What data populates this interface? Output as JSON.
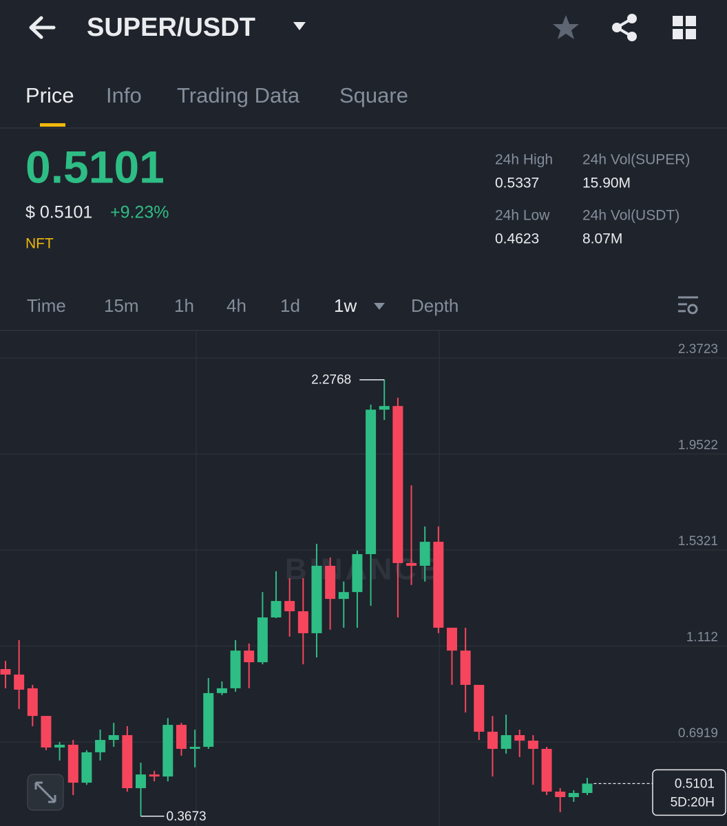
{
  "header": {
    "pair": "SUPER/USDT"
  },
  "tabs": [
    "Price",
    "Info",
    "Trading Data",
    "Square"
  ],
  "ticker": {
    "price": "0.5101",
    "usd_price": "$ 0.5101",
    "change": "+9.23%",
    "tag": "NFT",
    "stats": [
      {
        "label": "24h High",
        "value": "0.5337"
      },
      {
        "label": "24h Vol(SUPER)",
        "value": "15.90M"
      },
      {
        "label": "24h Low",
        "value": "0.4623"
      },
      {
        "label": "24h Vol(USDT)",
        "value": "8.07M"
      }
    ]
  },
  "intervals": [
    "Time",
    "15m",
    "1h",
    "4h",
    "1d",
    "1w",
    "Depth"
  ],
  "active_interval": "1w",
  "chart_data": {
    "type": "candlestick",
    "watermark": "BINANCE",
    "up_color": "#2ebd85",
    "down_color": "#f6465d",
    "grid": true,
    "ylim": [
      0.3245,
      2.4928
    ],
    "yticks": [
      2.3723,
      1.9522,
      1.5321,
      1.112,
      0.6919
    ],
    "open": [
      1.011,
      0.987,
      0.927,
      0.806,
      0.668,
      0.68,
      0.514,
      0.647,
      0.701,
      0.722,
      0.49,
      0.55,
      0.541,
      0.767,
      0.662,
      0.671,
      0.906,
      0.927,
      1.092,
      1.041,
      1.237,
      1.309,
      1.264,
      1.168,
      1.463,
      1.318,
      1.348,
      1.514,
      2.146,
      2.162,
      1.475,
      1.463,
      1.568,
      1.192,
      1.092,
      0.942,
      0.737,
      0.662,
      0.722,
      0.698,
      0.662,
      0.475,
      0.451,
      0.469
    ],
    "high": [
      1.047,
      1.138,
      0.942,
      0.806,
      0.692,
      0.701,
      0.656,
      0.746,
      0.776,
      0.761,
      0.602,
      0.566,
      0.797,
      0.776,
      0.746,
      0.972,
      0.957,
      1.138,
      1.123,
      1.348,
      1.439,
      1.409,
      1.409,
      1.559,
      1.499,
      1.394,
      1.529,
      2.168,
      2.2768,
      2.198,
      1.815,
      1.635,
      1.635,
      1.192,
      1.192,
      0.942,
      0.806,
      0.812,
      0.746,
      0.722,
      0.671,
      0.49,
      0.481,
      0.535
    ],
    "low": [
      0.927,
      0.836,
      0.761,
      0.656,
      0.611,
      0.46,
      0.505,
      0.611,
      0.671,
      0.475,
      0.3673,
      0.52,
      0.52,
      0.632,
      0.581,
      0.662,
      0.897,
      0.912,
      0.927,
      1.032,
      1.234,
      1.153,
      1.032,
      1.062,
      1.183,
      1.192,
      1.192,
      1.288,
      2.101,
      1.237,
      1.379,
      1.394,
      1.168,
      0.942,
      0.821,
      0.701,
      0.541,
      0.641,
      0.626,
      0.505,
      0.46,
      0.385,
      0.43,
      0.46
    ],
    "close": [
      0.987,
      0.921,
      0.806,
      0.668,
      0.68,
      0.514,
      0.647,
      0.701,
      0.722,
      0.49,
      0.55,
      0.541,
      0.767,
      0.662,
      0.671,
      0.906,
      0.927,
      1.092,
      1.041,
      1.237,
      1.309,
      1.264,
      1.168,
      1.463,
      1.318,
      1.348,
      1.514,
      2.146,
      2.162,
      1.475,
      1.463,
      1.568,
      1.192,
      1.092,
      0.942,
      0.737,
      0.662,
      0.722,
      0.698,
      0.662,
      0.475,
      0.451,
      0.469,
      0.5101
    ],
    "countdown": "5D:20H"
  }
}
